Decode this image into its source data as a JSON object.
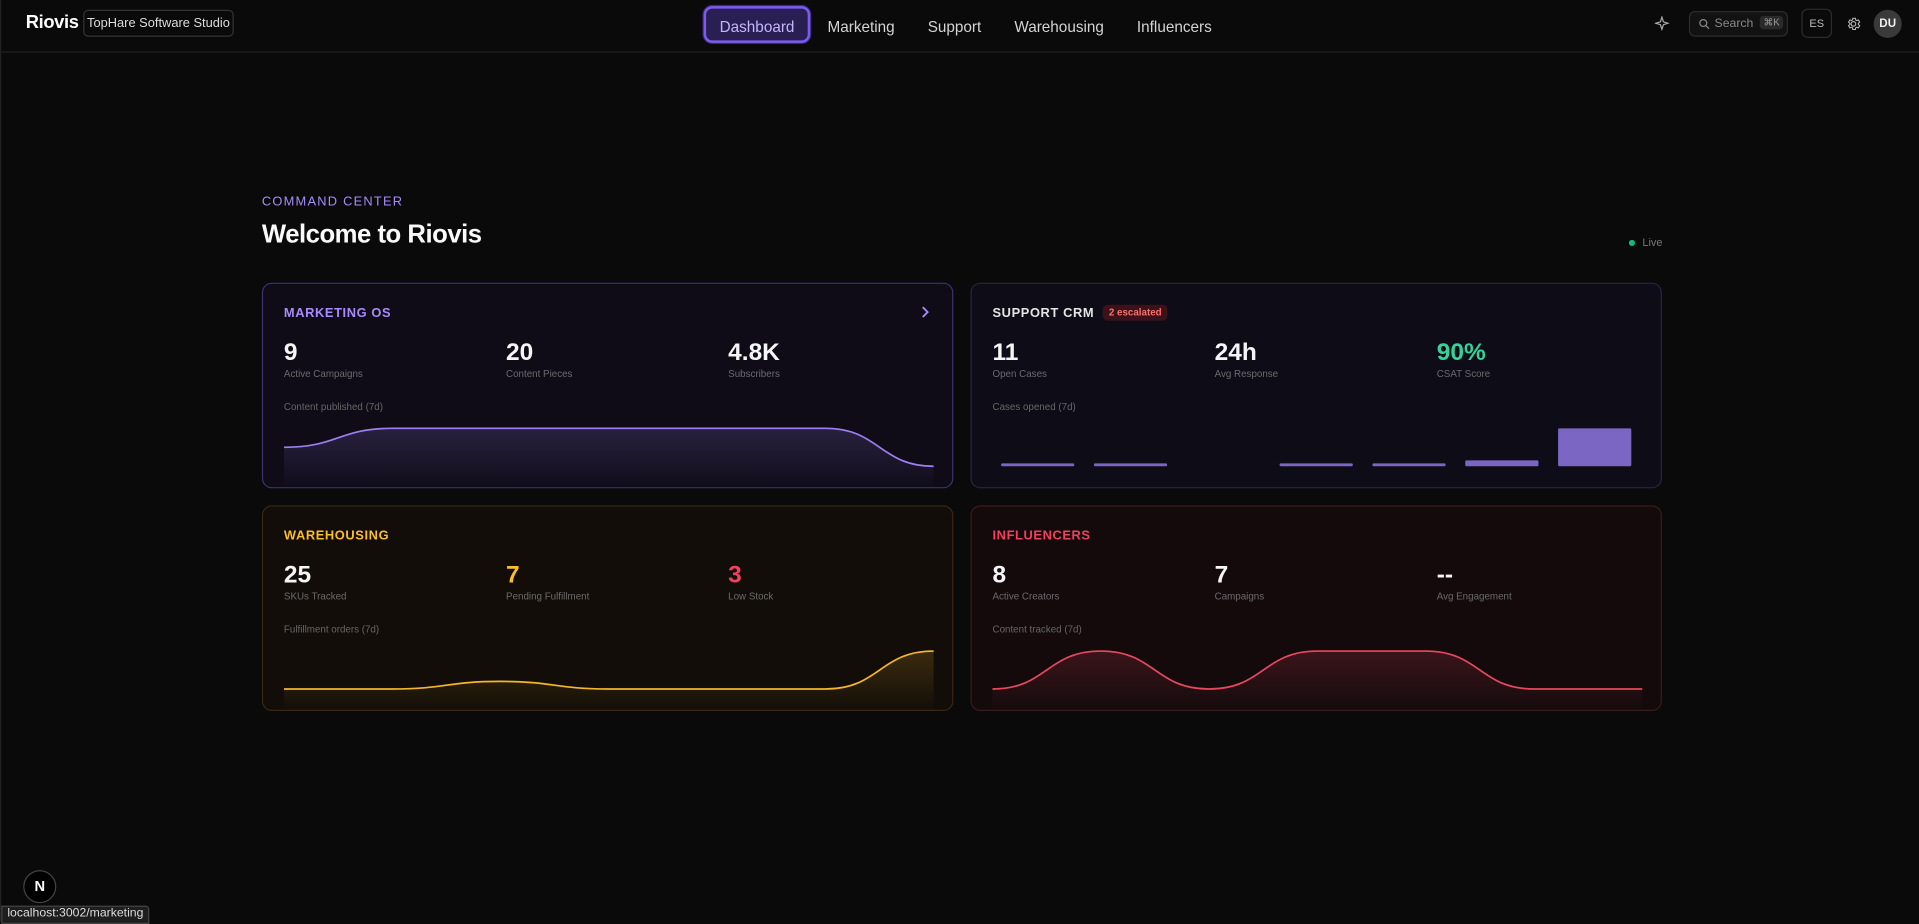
{
  "nav": {
    "brand": "Riovis",
    "workspace": "TopHare Software Studio",
    "links": [
      "Dashboard",
      "Marketing",
      "Support",
      "Warehousing",
      "Influencers"
    ],
    "search": {
      "placeholder": "Search",
      "shortcut": "⌘K"
    },
    "language": "ES",
    "avatar": "DU"
  },
  "header": {
    "eyebrow": "COMMAND CENTER",
    "title": "Welcome to Riovis",
    "status": "Live"
  },
  "cards": [
    {
      "title": "MARKETING OS",
      "color": "#a78bfa",
      "stats": [
        {
          "value": 9,
          "label": "Active Campaigns"
        },
        {
          "value": 20,
          "label": "Content Pieces"
        },
        {
          "value": "4.8K",
          "label": "Subscribers"
        }
      ],
      "chart": {
        "type": "line",
        "label": "Content published (7d)",
        "values": [
          2,
          4,
          4,
          4,
          4,
          4,
          0
        ],
        "color": "#9b7ff0"
      }
    },
    {
      "title": "SUPPORT CRM",
      "badge": "2 escalated",
      "color": "#e5e5e5",
      "stats": [
        {
          "value": 11,
          "label": "Open Cases"
        },
        {
          "value": "24h",
          "label": "Avg Response"
        },
        {
          "value": "90%",
          "label": "CSAT Score",
          "color": "#34d399"
        }
      ],
      "chart": {
        "type": "bar",
        "label": "Cases opened (7d)",
        "values": [
          1,
          1,
          0,
          1,
          1,
          2,
          13
        ],
        "color": "#7b66c4"
      }
    },
    {
      "title": "WAREHOUSING",
      "color": "#fbbf24",
      "stats": [
        {
          "value": 25,
          "label": "SKUs Tracked"
        },
        {
          "value": 7,
          "label": "Pending Fulfillment",
          "color": "#fbbf24"
        },
        {
          "value": 3,
          "label": "Low Stock",
          "color": "#f43f5e"
        }
      ],
      "chart": {
        "type": "line",
        "label": "Fulfillment orders (7d)",
        "values": [
          0,
          0,
          1,
          0,
          0,
          0,
          5
        ],
        "color": "#f5b62a"
      }
    },
    {
      "title": "INFLUENCERS",
      "color": "#f43f5e",
      "stats": [
        {
          "value": 8,
          "label": "Active Creators"
        },
        {
          "value": 7,
          "label": "Campaigns"
        },
        {
          "value": "--",
          "label": "Avg Engagement"
        }
      ],
      "chart": {
        "type": "line",
        "label": "Content tracked (7d)",
        "values": [
          0,
          1,
          0,
          1,
          1,
          0,
          0
        ],
        "color": "#e8485f"
      }
    }
  ],
  "dev_indicator": "N",
  "status_bar": "localhost:3002/marketing"
}
